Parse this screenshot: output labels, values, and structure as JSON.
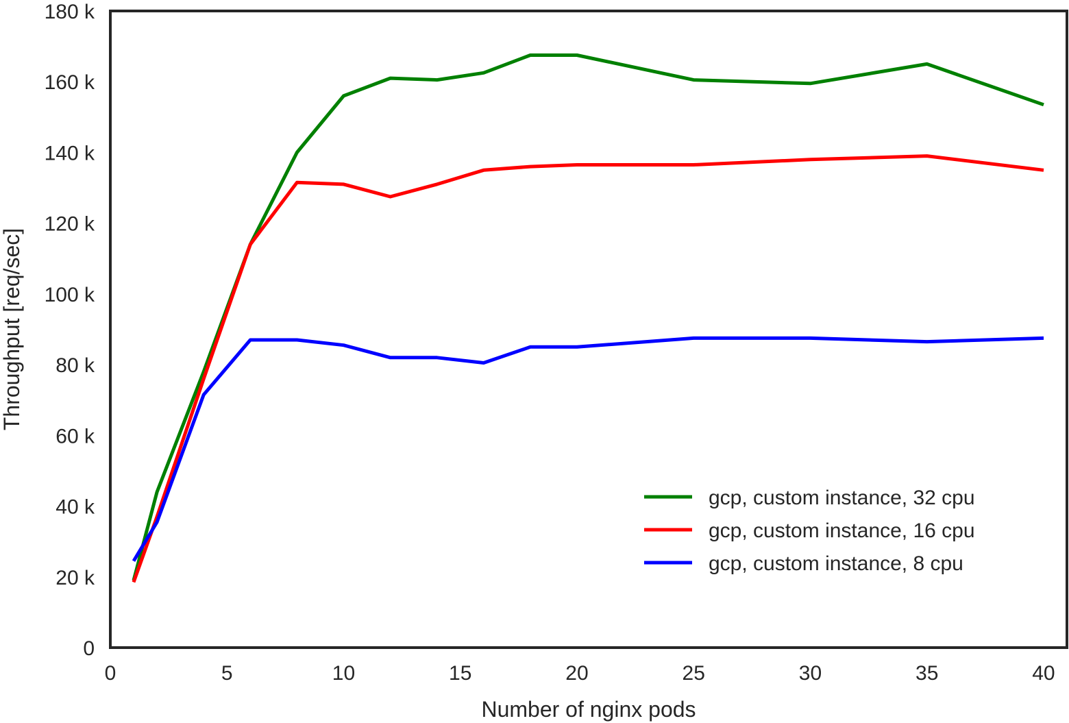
{
  "chart_data": {
    "type": "line",
    "title": "",
    "xlabel": "Number of nginx pods",
    "ylabel": "Throughput [req/sec]",
    "xlim": [
      0,
      41
    ],
    "ylim": [
      0,
      180000
    ],
    "xticks": [
      0,
      5,
      10,
      15,
      20,
      25,
      30,
      35,
      40
    ],
    "xtick_labels": [
      "0",
      "5",
      "10",
      "15",
      "20",
      "25",
      "30",
      "35",
      "40"
    ],
    "yticks": [
      0,
      20000,
      40000,
      60000,
      80000,
      100000,
      120000,
      140000,
      160000,
      180000
    ],
    "ytick_labels": [
      "0",
      "20 k",
      "40 k",
      "60 k",
      "80 k",
      "100 k",
      "120 k",
      "140 k",
      "160 k",
      "180 k"
    ],
    "grid": false,
    "legend_position": "lower-right",
    "x": [
      1,
      2,
      4,
      6,
      8,
      10,
      12,
      14,
      16,
      18,
      20,
      25,
      30,
      35,
      40
    ],
    "series": [
      {
        "name": "gcp, custom instance, 32 cpu",
        "color": "#008000",
        "values": [
          19000,
          44000,
          78000,
          114000,
          140000,
          156000,
          161000,
          160500,
          162500,
          167500,
          167500,
          160500,
          159500,
          165000,
          153500
        ]
      },
      {
        "name": "gcp, custom instance, 16 cpu",
        "color": "#ff0000",
        "values": [
          18500,
          37000,
          76000,
          114000,
          131500,
          131000,
          127500,
          131000,
          135000,
          136000,
          136500,
          136500,
          138000,
          139000,
          135000
        ]
      },
      {
        "name": "gcp, custom instance, 8 cpu",
        "color": "#0000ff",
        "values": [
          24500,
          35500,
          71500,
          87000,
          87000,
          85500,
          82000,
          82000,
          80500,
          85000,
          85000,
          87500,
          87500,
          86500,
          87500
        ]
      }
    ]
  }
}
